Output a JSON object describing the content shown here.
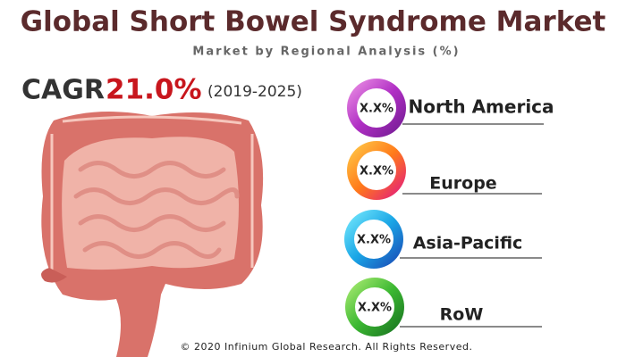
{
  "header": {
    "title": "Global Short Bowel Syndrome Market",
    "subtitle": "Market by Regional Analysis (%)"
  },
  "cagr": {
    "label": "CAGR",
    "value": "21.0%",
    "period": "(2019-2025)"
  },
  "regions": [
    {
      "share": "X.X%",
      "name": "North America"
    },
    {
      "share": "X.X%",
      "name": "Europe"
    },
    {
      "share": "X.X%",
      "name": "Asia-Pacific"
    },
    {
      "share": "X.X%",
      "name": "RoW"
    }
  ],
  "footer": "© 2020 Infinium Global Research. All Rights Reserved."
}
